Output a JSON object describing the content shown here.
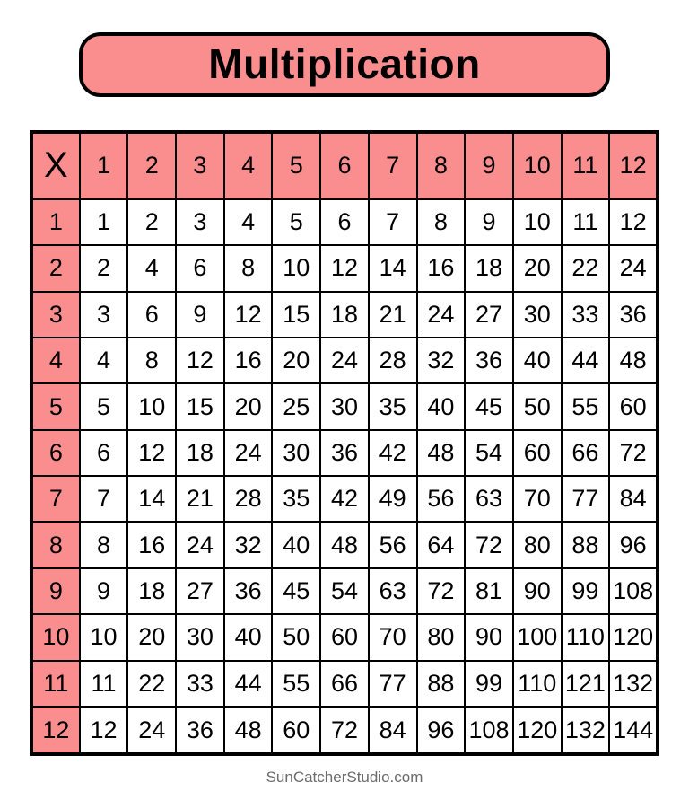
{
  "page": {
    "banner_title": "Multiplication",
    "footer_credit": "SunCatcherStudio.com"
  },
  "colors": {
    "header_fill": "#FA8E8E",
    "grid_border": "#000000",
    "cell_fill": "#FFFFFF",
    "footer_text": "#6B6B6B"
  },
  "chart_data": {
    "type": "table",
    "title": "Multiplication",
    "corner_label": "X",
    "col_headers": [
      "1",
      "2",
      "3",
      "4",
      "5",
      "6",
      "7",
      "8",
      "9",
      "10",
      "11",
      "12"
    ],
    "row_headers": [
      "1",
      "2",
      "3",
      "4",
      "5",
      "6",
      "7",
      "8",
      "9",
      "10",
      "11",
      "12"
    ],
    "rows": [
      [
        1,
        2,
        3,
        4,
        5,
        6,
        7,
        8,
        9,
        10,
        11,
        12
      ],
      [
        2,
        4,
        6,
        8,
        10,
        12,
        14,
        16,
        18,
        20,
        22,
        24
      ],
      [
        3,
        6,
        9,
        12,
        15,
        18,
        21,
        24,
        27,
        30,
        33,
        36
      ],
      [
        4,
        8,
        12,
        16,
        20,
        24,
        28,
        32,
        36,
        40,
        44,
        48
      ],
      [
        5,
        10,
        15,
        20,
        25,
        30,
        35,
        40,
        45,
        50,
        55,
        60
      ],
      [
        6,
        12,
        18,
        24,
        30,
        36,
        42,
        48,
        54,
        60,
        66,
        72
      ],
      [
        7,
        14,
        21,
        28,
        35,
        42,
        49,
        56,
        63,
        70,
        77,
        84
      ],
      [
        8,
        16,
        24,
        32,
        40,
        48,
        56,
        64,
        72,
        80,
        88,
        96
      ],
      [
        9,
        18,
        27,
        36,
        45,
        54,
        63,
        72,
        81,
        90,
        99,
        108
      ],
      [
        10,
        20,
        30,
        40,
        50,
        60,
        70,
        80,
        90,
        100,
        110,
        120
      ],
      [
        11,
        22,
        33,
        44,
        55,
        66,
        77,
        88,
        99,
        110,
        121,
        132
      ],
      [
        12,
        24,
        36,
        48,
        60,
        72,
        84,
        96,
        108,
        120,
        132,
        144
      ]
    ],
    "grid": true,
    "legend": false
  }
}
